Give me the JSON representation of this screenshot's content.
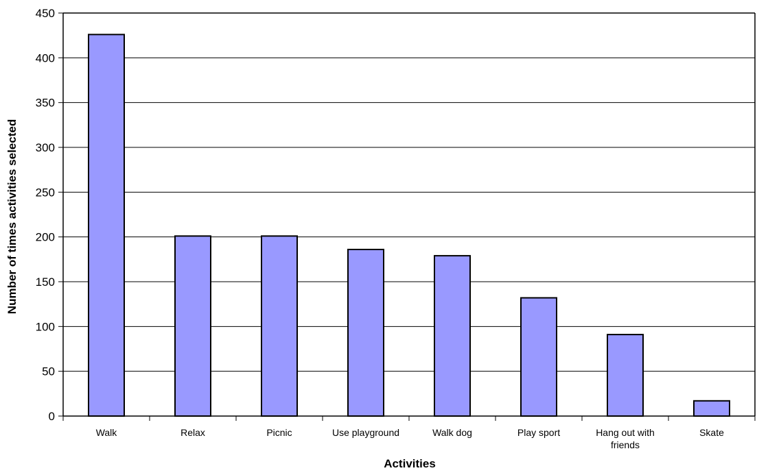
{
  "chart_data": {
    "type": "bar",
    "title": "",
    "xlabel": "Activities",
    "ylabel": "Number of times activities selected",
    "categories": [
      [
        "Walk"
      ],
      [
        "Relax"
      ],
      [
        "Picnic"
      ],
      [
        "Use playground"
      ],
      [
        "Walk dog"
      ],
      [
        "Play sport"
      ],
      [
        "Hang out with",
        "friends"
      ],
      [
        "Skate"
      ]
    ],
    "values": [
      426,
      201,
      201,
      186,
      179,
      132,
      91,
      17
    ],
    "ylim": [
      0,
      450
    ],
    "yticks": [
      0,
      50,
      100,
      150,
      200,
      250,
      300,
      350,
      400,
      450
    ],
    "grid": true,
    "legend": "none",
    "colors": {
      "bar_fill": "#9999ff",
      "bar_stroke": "#000000",
      "grid": "#000000",
      "axis": "#000000"
    }
  }
}
